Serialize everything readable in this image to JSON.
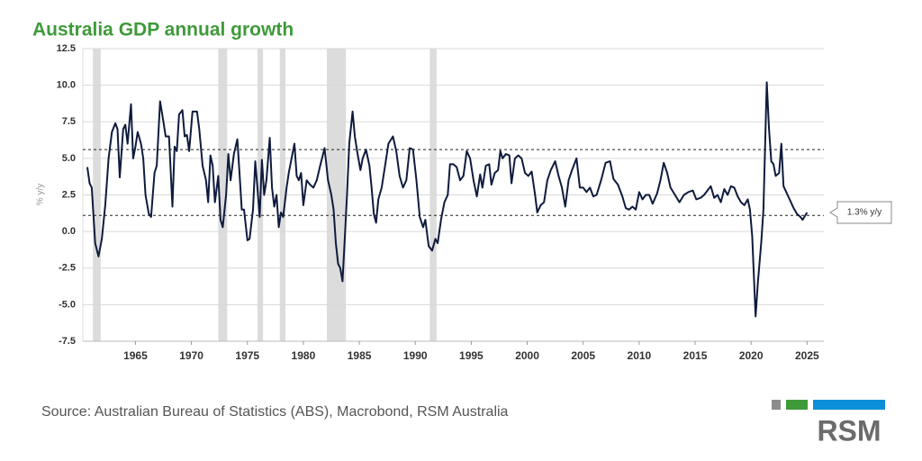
{
  "chart_data": {
    "type": "line",
    "title": "Australia GDP annual growth",
    "y_label": "% y/y",
    "source": "Source: Australian Bureau of Statistics (ABS), Macrobond, RSM Australia",
    "logo": "RSM",
    "annotation": "1.3% y/y",
    "color": "#0f1b3d",
    "xlim": [
      1960.3,
      2026.5
    ],
    "ylim": [
      -7.5,
      12.5
    ],
    "xticks": [
      1965,
      1970,
      1975,
      1980,
      1985,
      1990,
      1995,
      2000,
      2005,
      2010,
      2015,
      2020,
      2025
    ],
    "yticks": [
      12.5,
      {
        "value": 10,
        "label": "10.0"
      },
      7.5,
      {
        "value": 5,
        "label": "5.0"
      },
      2.5,
      {
        "value": 0,
        "label": "0.0"
      },
      -2.5,
      {
        "value": -5,
        "label": "-5.0"
      },
      -7.5
    ],
    "grid": true,
    "reference_lines": [
      5.6,
      1.1
    ],
    "shaded_periods": [
      [
        1961.2,
        1961.9
      ],
      [
        1972.4,
        1973.2
      ],
      [
        1975.9,
        1976.4
      ],
      [
        1977.9,
        1978.4
      ],
      [
        1982.1,
        1983.8
      ],
      [
        1991.3,
        1991.9
      ]
    ],
    "x": [
      1960.7,
      1960.9,
      1961.1,
      1961.4,
      1961.7,
      1962.0,
      1962.3,
      1962.6,
      1962.9,
      1963.2,
      1963.4,
      1963.6,
      1963.9,
      1964.1,
      1964.3,
      1964.6,
      1964.8,
      1965.0,
      1965.2,
      1965.5,
      1965.7,
      1965.9,
      1966.2,
      1966.4,
      1966.7,
      1966.9,
      1967.2,
      1967.5,
      1967.7,
      1968.0,
      1968.3,
      1968.5,
      1968.7,
      1968.9,
      1969.2,
      1969.4,
      1969.6,
      1969.8,
      1970.1,
      1970.5,
      1970.7,
      1971.0,
      1971.3,
      1971.5,
      1971.7,
      1971.9,
      1972.1,
      1972.4,
      1972.6,
      1972.8,
      1973.1,
      1973.3,
      1973.5,
      1973.8,
      1974.1,
      1974.3,
      1974.5,
      1974.7,
      1975.0,
      1975.2,
      1975.5,
      1975.7,
      1975.9,
      1976.1,
      1976.3,
      1976.5,
      1976.7,
      1977.0,
      1977.2,
      1977.4,
      1977.6,
      1977.8,
      1978.0,
      1978.2,
      1978.5,
      1978.7,
      1979.2,
      1979.4,
      1979.6,
      1979.8,
      1980.0,
      1980.3,
      1980.6,
      1980.9,
      1981.2,
      1981.5,
      1981.9,
      1982.2,
      1982.5,
      1982.7,
      1982.9,
      1983.1,
      1983.3,
      1983.5,
      1983.7,
      1983.9,
      1984.1,
      1984.4,
      1984.6,
      1984.8,
      1985.1,
      1985.3,
      1985.6,
      1985.9,
      1986.1,
      1986.3,
      1986.5,
      1986.7,
      1987.0,
      1987.3,
      1987.6,
      1988.0,
      1988.3,
      1988.6,
      1988.9,
      1989.2,
      1989.5,
      1989.8,
      1990.1,
      1990.4,
      1990.7,
      1990.9,
      1991.2,
      1991.5,
      1991.8,
      1992.0,
      1992.3,
      1992.6,
      1992.9,
      1993.1,
      1993.4,
      1993.7,
      1994.0,
      1994.3,
      1994.6,
      1994.9,
      1995.2,
      1995.5,
      1995.8,
      1996.0,
      1996.3,
      1996.6,
      1996.8,
      1997.1,
      1997.4,
      1997.6,
      1997.8,
      1998.1,
      1998.4,
      1998.6,
      1998.9,
      1999.2,
      1999.5,
      1999.8,
      2000.1,
      2000.4,
      2000.7,
      2000.9,
      2001.2,
      2001.5,
      2001.8,
      2002.1,
      2002.5,
      2002.8,
      2003.1,
      2003.4,
      2003.7,
      2004.0,
      2004.4,
      2004.7,
      2005.0,
      2005.3,
      2005.6,
      2005.9,
      2006.2,
      2006.6,
      2007.0,
      2007.4,
      2007.7,
      2008.1,
      2008.5,
      2008.8,
      2009.1,
      2009.4,
      2009.7,
      2010.0,
      2010.3,
      2010.6,
      2010.9,
      2011.2,
      2011.6,
      2011.9,
      2012.2,
      2012.5,
      2012.8,
      2013.2,
      2013.6,
      2014.0,
      2014.4,
      2014.8,
      2015.1,
      2015.5,
      2015.8,
      2016.1,
      2016.4,
      2016.7,
      2017.0,
      2017.3,
      2017.6,
      2017.9,
      2018.2,
      2018.5,
      2018.8,
      2019.1,
      2019.4,
      2019.7,
      2019.9,
      2020.1,
      2020.4,
      2020.6,
      2020.9,
      2021.1,
      2021.4,
      2021.6,
      2021.8,
      2022.0,
      2022.2,
      2022.5,
      2022.7,
      2022.9,
      2023.2,
      2023.5,
      2023.8,
      2024.1,
      2024.4,
      2024.6,
      2025.0
    ],
    "values": [
      4.4,
      3.3,
      3.0,
      -0.8,
      -1.7,
      -0.5,
      1.8,
      5.0,
      6.8,
      7.4,
      7.0,
      3.7,
      7.0,
      7.3,
      6.0,
      8.7,
      5.0,
      5.8,
      6.8,
      6.0,
      5.0,
      2.5,
      1.2,
      1.0,
      4.0,
      4.5,
      8.9,
      7.5,
      6.5,
      6.5,
      1.7,
      5.8,
      5.5,
      8.0,
      8.3,
      6.5,
      6.6,
      5.5,
      8.2,
      8.2,
      7.0,
      4.5,
      3.5,
      2.0,
      5.2,
      4.5,
      2.0,
      3.8,
      0.8,
      0.3,
      2.5,
      5.3,
      3.5,
      5.3,
      6.3,
      4.0,
      1.5,
      1.5,
      -0.6,
      -0.5,
      1.5,
      4.8,
      3.0,
      1.0,
      4.9,
      2.5,
      3.5,
      6.4,
      3.0,
      1.7,
      2.5,
      0.3,
      1.3,
      1.0,
      3.0,
      4.0,
      6.0,
      3.8,
      3.5,
      4.0,
      1.8,
      3.5,
      3.2,
      3.0,
      3.5,
      4.5,
      5.7,
      3.5,
      2.5,
      1.5,
      -0.8,
      -2.2,
      -2.5,
      -3.4,
      -0.5,
      2.5,
      6.0,
      8.2,
      6.5,
      5.5,
      4.2,
      5.0,
      5.6,
      4.5,
      3.0,
      1.2,
      0.6,
      2.2,
      3.0,
      4.5,
      6.0,
      6.5,
      5.5,
      3.8,
      3.0,
      3.5,
      5.7,
      5.6,
      3.5,
      1.0,
      0.3,
      0.8,
      -1.0,
      -1.3,
      -0.5,
      -0.8,
      0.8,
      2.0,
      2.5,
      4.6,
      4.6,
      4.4,
      3.5,
      3.8,
      5.5,
      5.0,
      3.5,
      2.4,
      3.9,
      3.0,
      4.5,
      4.6,
      3.2,
      4.0,
      4.2,
      5.5,
      5.0,
      5.3,
      5.2,
      3.3,
      5.0,
      5.2,
      5.0,
      4.0,
      3.8,
      4.1,
      2.5,
      1.3,
      1.8,
      2.0,
      3.5,
      4.2,
      4.8,
      3.8,
      3.0,
      1.7,
      3.5,
      4.2,
      5.0,
      3.0,
      3.0,
      2.7,
      3.0,
      2.4,
      2.5,
      3.5,
      4.7,
      4.8,
      3.6,
      3.2,
      2.4,
      1.6,
      1.5,
      1.7,
      1.5,
      2.7,
      2.2,
      2.5,
      2.5,
      1.9,
      2.6,
      3.5,
      4.7,
      4.0,
      3.0,
      2.5,
      2.0,
      2.5,
      2.7,
      2.8,
      2.2,
      2.3,
      2.5,
      2.8,
      3.1,
      2.3,
      2.5,
      2.0,
      2.9,
      2.5,
      3.1,
      3.0,
      2.4,
      2.0,
      1.8,
      2.2,
      1.5,
      -0.3,
      -5.8,
      -3.5,
      -0.8,
      1.5,
      10.2,
      7.0,
      4.8,
      4.6,
      3.8,
      4.0,
      6.0,
      3.1,
      2.6,
      2.1,
      1.6,
      1.2,
      1.0,
      0.8,
      1.3
    ]
  }
}
